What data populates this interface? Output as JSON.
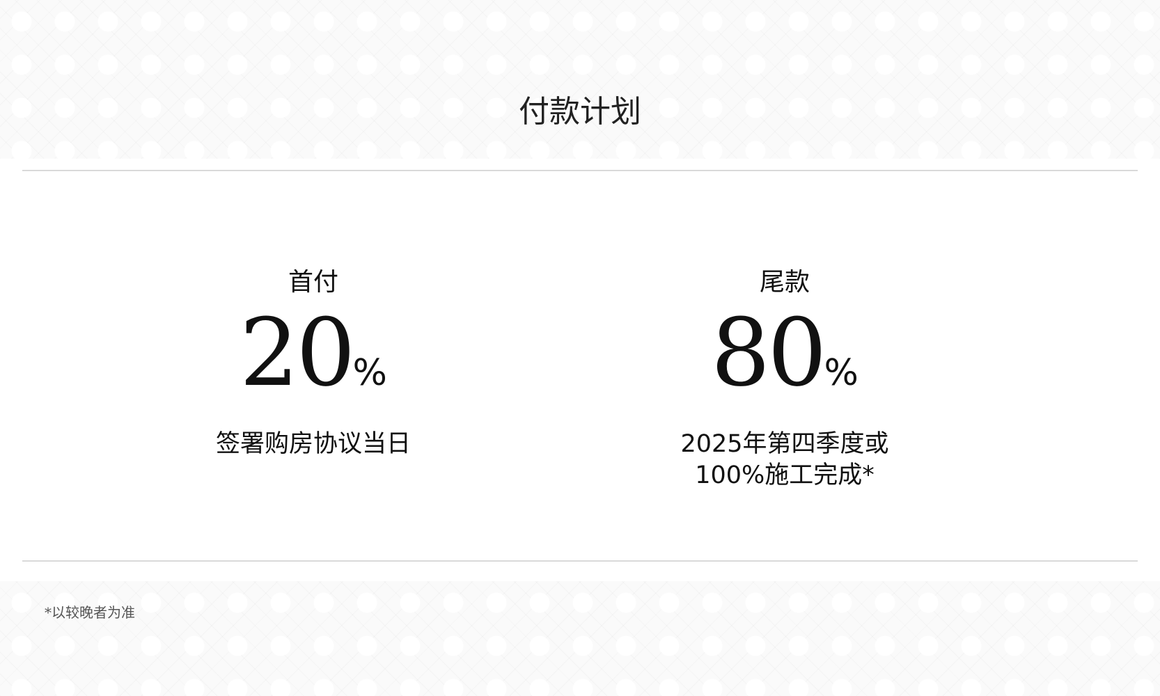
{
  "title": "付款计划",
  "plans": [
    {
      "label": "首付",
      "value": "20",
      "unit": "%",
      "description": "签署购房协议当日"
    },
    {
      "label": "尾款",
      "value": "80",
      "unit": "%",
      "description": "2025年第四季度或\n100%施工完成*"
    }
  ],
  "footnote": "*以较晚者为准"
}
